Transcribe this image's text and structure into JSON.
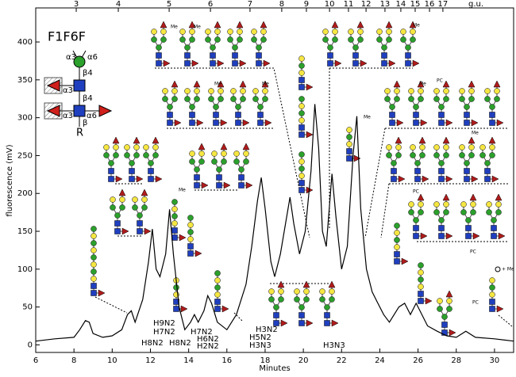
{
  "chart_data": {
    "type": "line",
    "x_label": "Minutes",
    "y_label": "fluorescence (mV)",
    "x2_label": "g.u.",
    "color": "#000000",
    "x": [
      6,
      7,
      8,
      8.3,
      8.6,
      8.8,
      9.0,
      9.5,
      10,
      10.5,
      10.8,
      11.0,
      11.2,
      11.6,
      11.9,
      12.1,
      12.3,
      12.5,
      12.8,
      13.0,
      13.2,
      13.5,
      13.8,
      14.1,
      14.3,
      14.5,
      14.8,
      15.0,
      15.2,
      15.5,
      16.0,
      16.5,
      17.0,
      17.3,
      17.6,
      17.8,
      18.0,
      18.3,
      18.5,
      18.8,
      19.3,
      19.5,
      19.8,
      20.1,
      20.4,
      20.6,
      20.8,
      21.0,
      21.2,
      21.5,
      21.7,
      22.0,
      22.3,
      22.6,
      22.8,
      23.0,
      23.3,
      23.6,
      23.9,
      24.2,
      24.5,
      25.0,
      25.3,
      25.6,
      25.9,
      26.1,
      26.5,
      27.0,
      27.5,
      28.0,
      28.5,
      29.0,
      30.0,
      31.0
    ],
    "values": [
      5,
      8,
      10,
      20,
      32,
      30,
      15,
      10,
      12,
      20,
      40,
      45,
      30,
      60,
      110,
      153,
      100,
      90,
      120,
      179,
      120,
      50,
      20,
      30,
      40,
      30,
      45,
      65,
      55,
      30,
      20,
      40,
      80,
      130,
      190,
      221,
      180,
      110,
      90,
      120,
      195,
      160,
      120,
      150,
      230,
      318,
      260,
      150,
      130,
      226,
      170,
      100,
      130,
      250,
      302,
      180,
      100,
      70,
      55,
      40,
      30,
      50,
      55,
      40,
      55,
      45,
      25,
      18,
      12,
      10,
      18,
      10,
      8,
      5
    ],
    "xlim": [
      6,
      31
    ],
    "ylim": [
      -10,
      445
    ],
    "xticks": [
      6,
      8,
      10,
      12,
      14,
      16,
      18,
      20,
      22,
      24,
      26,
      28,
      30
    ],
    "yticks": [
      0,
      50,
      100,
      150,
      200,
      250,
      300,
      350,
      400
    ],
    "x2ticks": [
      {
        "value": 8.12,
        "label": "3"
      },
      {
        "value": 10.32,
        "label": "4"
      },
      {
        "value": 12.98,
        "label": "5"
      },
      {
        "value": 15.14,
        "label": "6"
      },
      {
        "value": 17.21,
        "label": "7"
      },
      {
        "value": 18.87,
        "label": "8"
      },
      {
        "value": 20.16,
        "label": "9"
      },
      {
        "value": 21.37,
        "label": "10"
      },
      {
        "value": 22.36,
        "label": "11"
      },
      {
        "value": 23.28,
        "label": "12"
      },
      {
        "value": 24.27,
        "label": "13"
      },
      {
        "value": 25.1,
        "label": "14"
      },
      {
        "value": 25.85,
        "label": "15"
      },
      {
        "value": 26.6,
        "label": "16"
      },
      {
        "value": 27.3,
        "label": "17"
      }
    ],
    "annotations": [
      "H9N2",
      "H7N2",
      "H8N2",
      "H8N2",
      "H7N2",
      "H6N2",
      "H2N2",
      "H3N2",
      "H5N2",
      "H3N3",
      "H3N3"
    ],
    "structure": {
      "title": "F1F6F",
      "linkages": [
        "α3",
        "α6",
        "β4",
        "α3",
        "β4",
        "α3",
        "α6",
        "β"
      ],
      "root": "R"
    },
    "glycan_labels": [
      "Me",
      "Me",
      "Me",
      "Me",
      "Me",
      "Me",
      "Me",
      "Me",
      "Me",
      "PC",
      "PC",
      "PC",
      "PC",
      "+ Me"
    ]
  }
}
